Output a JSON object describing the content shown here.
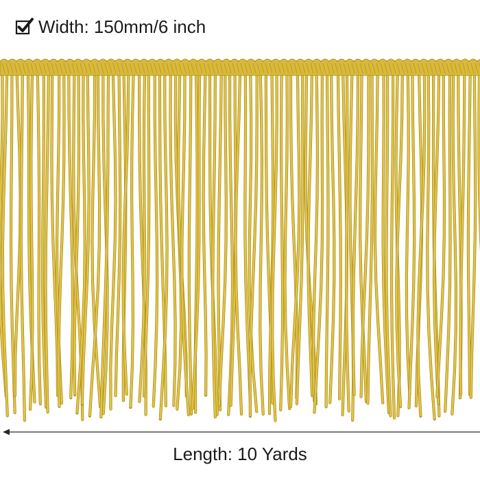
{
  "width_label": "Width: 150mm/6 inch",
  "length_label": "Length: 10 Yards",
  "icons": {
    "width_check": "checkbox-checked-icon",
    "length_arrow": "arrow-left-icon"
  },
  "colors": {
    "fringe_main": "#d8b93a",
    "fringe_shadow": "#a8891c",
    "fringe_highlight": "#f0d86a",
    "text": "#1a1a1a",
    "background": "#ffffff"
  }
}
